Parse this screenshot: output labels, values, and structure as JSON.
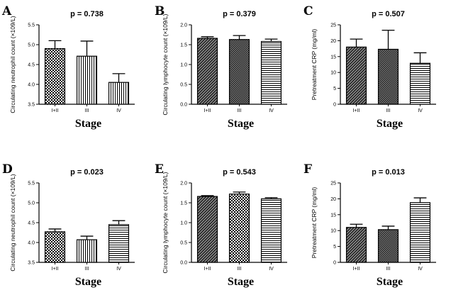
{
  "figure": {
    "x_label": "Stage",
    "categories": [
      "I+II",
      "III",
      "IV"
    ]
  },
  "chart_data": [
    {
      "letter": "A",
      "type": "bar",
      "title": "p = 0.738",
      "ylabel": "Circulating neutrophil count (×109/L)",
      "ylim": [
        3.5,
        5.5
      ],
      "ticks": [
        3.5,
        4.0,
        4.5,
        5.0,
        5.5
      ],
      "tick_labels": [
        "3.5",
        "4.0",
        "4.5",
        "5.0",
        "5.5"
      ],
      "categories": [
        "I+II",
        "III",
        "IV"
      ],
      "values": [
        4.9,
        4.71,
        4.05
      ],
      "errors": [
        0.2,
        0.38,
        0.22
      ],
      "patterns": [
        "checker",
        "vlines",
        "vlines"
      ],
      "xlabel": "Stage"
    },
    {
      "letter": "B",
      "type": "bar",
      "title": "p = 0.379",
      "ylabel": "Circulating lymphocyte count (×109/L)",
      "ylim": [
        0,
        2.0
      ],
      "ticks": [
        0,
        0.5,
        1.0,
        1.5,
        2.0
      ],
      "tick_labels": [
        "0.0",
        "0.5",
        "1.0",
        "1.5",
        "2.0"
      ],
      "categories": [
        "I+II",
        "III",
        "IV"
      ],
      "values": [
        1.66,
        1.63,
        1.58
      ],
      "errors": [
        0.04,
        0.1,
        0.06
      ],
      "patterns": [
        "diag",
        "dense",
        "hlines"
      ],
      "xlabel": "Stage"
    },
    {
      "letter": "C",
      "type": "bar",
      "title": "p = 0.507",
      "ylabel": "Pretreatment CRP (mg/ml)",
      "ylim": [
        0,
        25
      ],
      "ticks": [
        0,
        5,
        10,
        15,
        20,
        25
      ],
      "tick_labels": [
        "0",
        "5",
        "10",
        "15",
        "20",
        "25"
      ],
      "categories": [
        "I+II",
        "III",
        "IV"
      ],
      "values": [
        18,
        17.3,
        12.9
      ],
      "errors": [
        2.5,
        6,
        3.3
      ],
      "patterns": [
        "diag",
        "dense",
        "hlines"
      ],
      "xlabel": "Stage"
    },
    {
      "letter": "D",
      "type": "bar",
      "title": "p = 0.023",
      "ylabel": "Circulating neutrophil count (×109/L)",
      "ylim": [
        3.5,
        5.5
      ],
      "ticks": [
        3.5,
        4.0,
        4.5,
        5.0,
        5.5
      ],
      "tick_labels": [
        "3.5",
        "4.0",
        "4.5",
        "5.0",
        "5.5"
      ],
      "categories": [
        "I+II",
        "III",
        "IV"
      ],
      "values": [
        4.27,
        4.07,
        4.45
      ],
      "errors": [
        0.07,
        0.09,
        0.1
      ],
      "patterns": [
        "checker",
        "vlines",
        "hlines"
      ],
      "xlabel": "Stage"
    },
    {
      "letter": "E",
      "type": "bar",
      "title": "p = 0.543",
      "ylabel": "Circulating lymphocyte count (×109/L)",
      "ylim": [
        0,
        2.0
      ],
      "ticks": [
        0,
        0.5,
        1.0,
        1.5,
        2.0
      ],
      "tick_labels": [
        "0.0",
        "0.5",
        "1.0",
        "1.5",
        "2.0"
      ],
      "categories": [
        "I+II",
        "III",
        "IV"
      ],
      "values": [
        1.66,
        1.72,
        1.6
      ],
      "errors": [
        0.02,
        0.05,
        0.03
      ],
      "patterns": [
        "diag",
        "checker",
        "hlines"
      ],
      "xlabel": "Stage"
    },
    {
      "letter": "F",
      "type": "bar",
      "title": "p = 0.013",
      "ylabel": "Pretreatment CRP (mg/ml)",
      "ylim": [
        0,
        25
      ],
      "ticks": [
        0,
        5,
        10,
        15,
        20,
        25
      ],
      "tick_labels": [
        "0",
        "5",
        "10",
        "15",
        "20",
        "25"
      ],
      "categories": [
        "I+II",
        "III",
        "IV"
      ],
      "values": [
        11,
        10.3,
        18.8
      ],
      "errors": [
        1.0,
        1.1,
        1.5
      ],
      "patterns": [
        "diag",
        "dense",
        "hlines"
      ],
      "xlabel": "Stage"
    }
  ]
}
